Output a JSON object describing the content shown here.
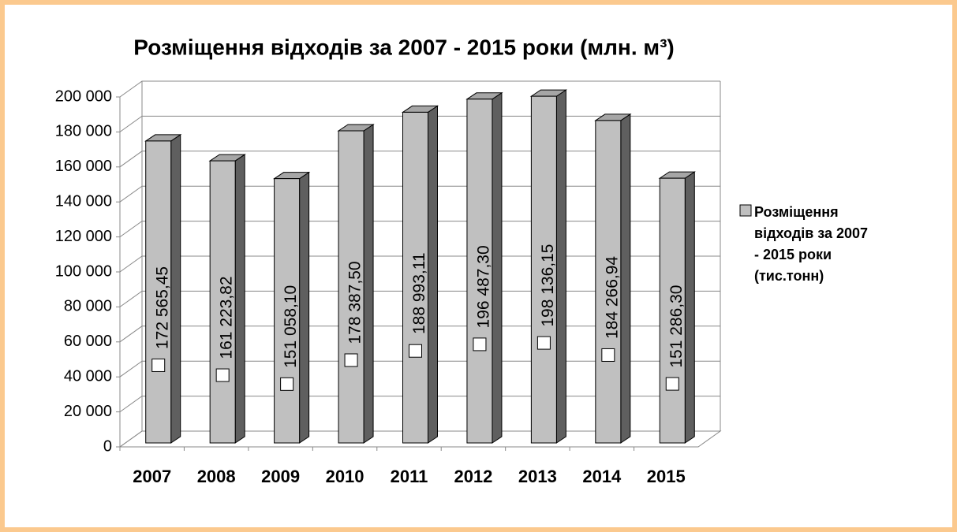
{
  "chart_data": {
    "type": "bar3d",
    "title": "Розміщення відходів за 2007 - 2015 роки (млн. м³)",
    "categories": [
      "2007",
      "2008",
      "2009",
      "2010",
      "2011",
      "2012",
      "2013",
      "2014",
      "2015"
    ],
    "series": [
      {
        "name": "Розміщення відходів за 2007 - 2015 роки (тис.тонн)",
        "color": "#c0c0c0",
        "values": [
          172565.45,
          161223.82,
          151058.1,
          178387.5,
          188993.11,
          196487.3,
          198136.15,
          184266.94,
          151286.3
        ],
        "value_labels": [
          "172 565,45",
          "161 223,82",
          "151 058,10",
          "178 387,50",
          "188 993,11",
          "196 487,30",
          "198 136,15",
          "184 266,94",
          "151 286,30"
        ]
      }
    ],
    "ylim": [
      0,
      200000
    ],
    "yticks": [
      0,
      {
        "value": 20000,
        "label": "20 000"
      },
      {
        "value": 40000,
        "label": "40 000"
      },
      {
        "value": 60000,
        "label": "60 000"
      },
      {
        "value": 80000,
        "label": "80 000"
      },
      {
        "value": 100000,
        "label": "100 000"
      },
      {
        "value": 120000,
        "label": "120 000"
      },
      {
        "value": 140000,
        "label": "140 000"
      },
      {
        "value": 160000,
        "label": "160 000"
      },
      {
        "value": 180000,
        "label": "180 000"
      },
      {
        "value": 200000,
        "label": "200 000"
      }
    ],
    "grid": true,
    "legend": "right"
  }
}
